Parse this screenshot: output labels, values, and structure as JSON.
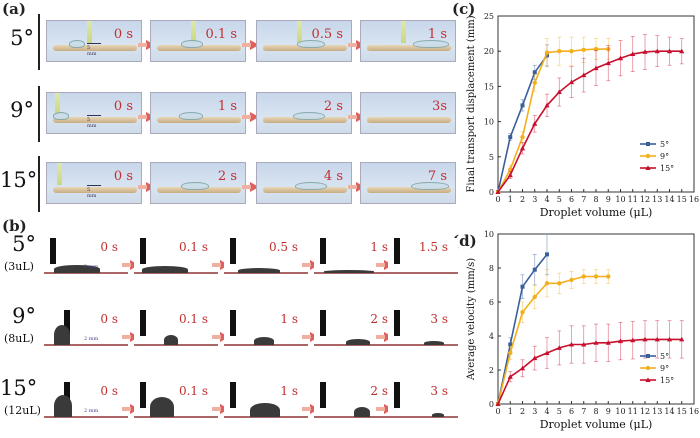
{
  "panels": {
    "a": "(a)",
    "b": "(b)",
    "c": "(c)",
    "d": "(d)"
  },
  "panel_a": {
    "rows": [
      {
        "angle": "5°",
        "scale": "5 mm",
        "times": [
          "0 s",
          "0.1 s",
          "0.5 s",
          "1 s"
        ]
      },
      {
        "angle": "9°",
        "scale": "5 mm",
        "times": [
          "0 s",
          "1 s",
          "2 s",
          "3s"
        ]
      },
      {
        "angle": "15°",
        "scale": "5 mm",
        "times": [
          "0 s",
          "2 s",
          "4 s",
          "7 s"
        ]
      }
    ]
  },
  "panel_b": {
    "rows": [
      {
        "angle": "5°",
        "volume": "(3uL)",
        "scale": "2 mm",
        "times": [
          "0 s",
          "0.1 s",
          "0.5 s",
          "1 s",
          "1.5 s"
        ]
      },
      {
        "angle": "9°",
        "volume": "(8uL)",
        "scale": "2 mm",
        "times": [
          "0 s",
          "0.1 s",
          "1 s",
          "2 s",
          "3 s"
        ]
      },
      {
        "angle": "15°",
        "volume": "(12uL)",
        "scale": "2 mm",
        "times": [
          "0 s",
          "0.1 s",
          "1 s",
          "2 s",
          "3 s"
        ]
      }
    ]
  },
  "colors": {
    "s5": "#3a5f9a",
    "s9": "#f2b01e",
    "s15": "#c8102e",
    "time": "#c03030"
  },
  "chart_data": [
    {
      "type": "line",
      "title": "",
      "xlabel": "Droplet volume (μL)",
      "ylabel": "Final transport displacement (mm)",
      "xlim": [
        0,
        16
      ],
      "ylim": [
        0,
        25
      ],
      "xticks": [
        "0",
        "1",
        "2",
        "3",
        "4",
        "5",
        "6",
        "7",
        "8",
        "9",
        "10",
        "11",
        "12",
        "13",
        "14",
        "15",
        "16"
      ],
      "yticks": [
        "0",
        "5",
        "10",
        "15",
        "20",
        "25"
      ],
      "legend": "bottom-right",
      "series": [
        {
          "name": "5°",
          "x": [
            0,
            1,
            2,
            3,
            4
          ],
          "y": [
            0,
            7.8,
            12.3,
            17,
            19.4
          ],
          "err": [
            0,
            0.5,
            0.8,
            1,
            1.5
          ]
        },
        {
          "name": "9°",
          "x": [
            0,
            1,
            2,
            3,
            4,
            5,
            6,
            7,
            8,
            9
          ],
          "y": [
            0,
            3.2,
            7.8,
            15.5,
            19.8,
            20,
            20,
            20.2,
            20.3,
            20.3
          ],
          "err": [
            0,
            0.6,
            0.8,
            1.2,
            2,
            2,
            2,
            1.8,
            1.5,
            1.5
          ]
        },
        {
          "name": "15°",
          "x": [
            0,
            1,
            2,
            3,
            4,
            5,
            6,
            7,
            8,
            9,
            10,
            11,
            12,
            13,
            14,
            15
          ],
          "y": [
            0,
            2.4,
            6.2,
            9.7,
            12.3,
            14.2,
            15.6,
            16.6,
            17.6,
            18.3,
            19,
            19.6,
            19.9,
            20,
            20,
            20
          ],
          "err": [
            0,
            0.5,
            0.8,
            1.2,
            1.6,
            2,
            2.2,
            2.4,
            2.5,
            2.5,
            2.5,
            2.5,
            2.5,
            2.2,
            2,
            1.8
          ]
        }
      ]
    },
    {
      "type": "line",
      "title": "",
      "xlabel": "Droplet volume (μL)",
      "ylabel": "Average velocity (mm/s)",
      "xlim": [
        0,
        16
      ],
      "ylim": [
        0,
        10
      ],
      "xticks": [
        "0",
        "1",
        "2",
        "3",
        "4",
        "5",
        "6",
        "7",
        "8",
        "9",
        "10",
        "11",
        "12",
        "13",
        "14",
        "15",
        "16"
      ],
      "yticks": [
        "0",
        "2",
        "4",
        "6",
        "8",
        "10"
      ],
      "legend": "bottom-right",
      "series": [
        {
          "name": "5°",
          "x": [
            0,
            1,
            2,
            3,
            4
          ],
          "y": [
            0,
            3.5,
            6.9,
            7.9,
            8.8
          ],
          "err": [
            0,
            0.4,
            0.7,
            0.9,
            1.2
          ]
        },
        {
          "name": "9°",
          "x": [
            0,
            1,
            2,
            3,
            4,
            5,
            6,
            7,
            8,
            9
          ],
          "y": [
            0,
            3,
            5.4,
            6.3,
            7.1,
            7.1,
            7.3,
            7.5,
            7.5,
            7.5
          ],
          "err": [
            0,
            0.4,
            0.6,
            0.7,
            0.8,
            0.6,
            0.5,
            0.4,
            0.4,
            0.4
          ]
        },
        {
          "name": "15°",
          "x": [
            0,
            1,
            2,
            3,
            4,
            5,
            6,
            7,
            8,
            9,
            10,
            11,
            12,
            13,
            14,
            15
          ],
          "y": [
            0,
            1.6,
            2.1,
            2.7,
            3.0,
            3.3,
            3.5,
            3.5,
            3.6,
            3.6,
            3.7,
            3.75,
            3.8,
            3.8,
            3.8,
            3.8
          ],
          "err": [
            0,
            0.3,
            0.5,
            0.7,
            0.9,
            1,
            1.1,
            1.1,
            1.1,
            1.1,
            1.1,
            1.1,
            1.1,
            1.1,
            1.1,
            1.1
          ]
        }
      ]
    }
  ]
}
